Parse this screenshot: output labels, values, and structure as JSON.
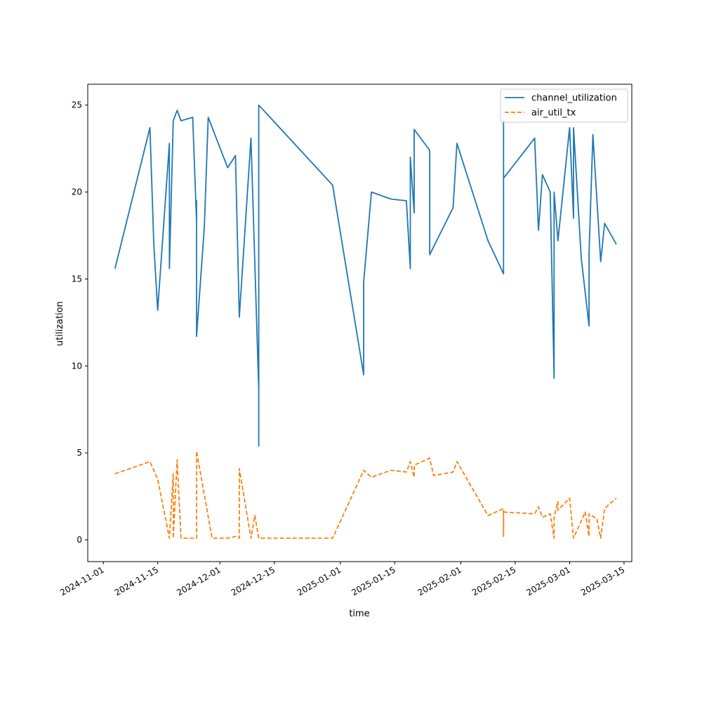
{
  "chart_data": {
    "type": "line",
    "title": "",
    "xlabel": "time",
    "ylabel": "utilization",
    "x_axis": "date",
    "xlim": [
      "2024-10-28",
      "2025-03-17"
    ],
    "ylim": [
      -1.25,
      26.2
    ],
    "yticks": [
      0,
      5,
      10,
      15,
      20,
      25
    ],
    "xticks": [
      "2024-11-01",
      "2024-11-15",
      "2024-12-01",
      "2024-12-15",
      "2025-01-01",
      "2025-01-15",
      "2025-02-01",
      "2025-02-15",
      "2025-03-01",
      "2025-03-15"
    ],
    "grid": false,
    "legend_position": "top-right",
    "series": [
      {
        "name": "channel_utilization",
        "color": "#1f77b4",
        "style": "solid",
        "points": [
          [
            "2024-11-04",
            15.6
          ],
          [
            "2024-11-13",
            23.7
          ],
          [
            "2024-11-14",
            17.0
          ],
          [
            "2024-11-15",
            13.2
          ],
          [
            "2024-11-18",
            22.8
          ],
          [
            "2024-11-18",
            15.6
          ],
          [
            "2024-11-19",
            24.1
          ],
          [
            "2024-11-20",
            24.7
          ],
          [
            "2024-11-21",
            24.1
          ],
          [
            "2024-11-24",
            24.3
          ],
          [
            "2024-11-25",
            18.3
          ],
          [
            "2024-11-25",
            19.5
          ],
          [
            "2024-11-25",
            11.7
          ],
          [
            "2024-11-27",
            18.0
          ],
          [
            "2024-11-28",
            24.3
          ],
          [
            "2024-12-03",
            21.4
          ],
          [
            "2024-12-05",
            22.1
          ],
          [
            "2024-12-06",
            12.8
          ],
          [
            "2024-12-09",
            23.1
          ],
          [
            "2024-12-11",
            8.6
          ],
          [
            "2024-12-11",
            5.4
          ],
          [
            "2024-12-11",
            25.0
          ],
          [
            "2024-12-30",
            20.4
          ],
          [
            "2025-01-07",
            9.5
          ],
          [
            "2025-01-07",
            14.8
          ],
          [
            "2025-01-09",
            20.0
          ],
          [
            "2025-01-14",
            19.6
          ],
          [
            "2025-01-18",
            19.5
          ],
          [
            "2025-01-19",
            15.6
          ],
          [
            "2025-01-19",
            22.0
          ],
          [
            "2025-01-20",
            18.8
          ],
          [
            "2025-01-20",
            23.6
          ],
          [
            "2025-01-24",
            22.4
          ],
          [
            "2025-01-24",
            16.4
          ],
          [
            "2025-01-30",
            19.1
          ],
          [
            "2025-01-31",
            22.8
          ],
          [
            "2025-02-08",
            17.2
          ],
          [
            "2025-02-12",
            15.3
          ],
          [
            "2025-02-12",
            24.2
          ],
          [
            "2025-02-12",
            20.8
          ],
          [
            "2025-02-20",
            23.1
          ],
          [
            "2025-02-21",
            17.8
          ],
          [
            "2025-02-22",
            21.0
          ],
          [
            "2025-02-24",
            20.0
          ],
          [
            "2025-02-25",
            9.3
          ],
          [
            "2025-02-25",
            17.0
          ],
          [
            "2025-02-25",
            20.0
          ],
          [
            "2025-02-26",
            17.2
          ],
          [
            "2025-03-01",
            23.7
          ],
          [
            "2025-03-02",
            18.5
          ],
          [
            "2025-03-02",
            23.7
          ],
          [
            "2025-03-04",
            16.2
          ],
          [
            "2025-03-06",
            12.3
          ],
          [
            "2025-03-06",
            16.5
          ],
          [
            "2025-03-07",
            23.3
          ],
          [
            "2025-03-09",
            16.0
          ],
          [
            "2025-03-10",
            18.2
          ],
          [
            "2025-03-13",
            17.0
          ]
        ]
      },
      {
        "name": "air_util_tx",
        "color": "#ff7f0e",
        "style": "dashed",
        "points": [
          [
            "2024-11-04",
            3.8
          ],
          [
            "2024-11-13",
            4.5
          ],
          [
            "2024-11-15",
            3.5
          ],
          [
            "2024-11-18",
            0.1
          ],
          [
            "2024-11-19",
            3.8
          ],
          [
            "2024-11-19",
            0.1
          ],
          [
            "2024-11-20",
            4.6
          ],
          [
            "2024-11-21",
            0.1
          ],
          [
            "2024-11-25",
            0.1
          ],
          [
            "2024-11-25",
            5.1
          ],
          [
            "2024-11-29",
            0.1
          ],
          [
            "2024-12-03",
            0.1
          ],
          [
            "2024-12-05",
            0.2
          ],
          [
            "2024-12-06",
            0.1
          ],
          [
            "2024-12-06",
            4.1
          ],
          [
            "2024-12-09",
            0.1
          ],
          [
            "2024-12-10",
            1.4
          ],
          [
            "2024-12-11",
            0.1
          ],
          [
            "2024-12-30",
            0.1
          ],
          [
            "2025-01-06",
            3.5
          ],
          [
            "2025-01-07",
            4.0
          ],
          [
            "2025-01-09",
            3.6
          ],
          [
            "2025-01-14",
            4.0
          ],
          [
            "2025-01-18",
            3.9
          ],
          [
            "2025-01-19",
            4.5
          ],
          [
            "2025-01-20",
            3.6
          ],
          [
            "2025-01-20",
            4.3
          ],
          [
            "2025-01-22",
            4.5
          ],
          [
            "2025-01-24",
            4.7
          ],
          [
            "2025-01-25",
            3.7
          ],
          [
            "2025-01-30",
            3.9
          ],
          [
            "2025-01-31",
            4.5
          ],
          [
            "2025-02-08",
            1.4
          ],
          [
            "2025-02-12",
            1.8
          ],
          [
            "2025-02-12",
            0.2
          ],
          [
            "2025-02-12",
            1.6
          ],
          [
            "2025-02-20",
            1.5
          ],
          [
            "2025-02-21",
            1.9
          ],
          [
            "2025-02-22",
            1.3
          ],
          [
            "2025-02-24",
            1.5
          ],
          [
            "2025-02-25",
            0.1
          ],
          [
            "2025-02-25",
            1.3
          ],
          [
            "2025-02-26",
            2.2
          ],
          [
            "2025-02-26",
            1.7
          ],
          [
            "2025-03-01",
            2.4
          ],
          [
            "2025-03-02",
            0.1
          ],
          [
            "2025-03-05",
            1.6
          ],
          [
            "2025-03-06",
            0.2
          ],
          [
            "2025-03-06",
            1.5
          ],
          [
            "2025-03-08",
            1.2
          ],
          [
            "2025-03-09",
            0.1
          ],
          [
            "2025-03-10",
            1.8
          ],
          [
            "2025-03-13",
            2.4
          ]
        ]
      }
    ]
  }
}
